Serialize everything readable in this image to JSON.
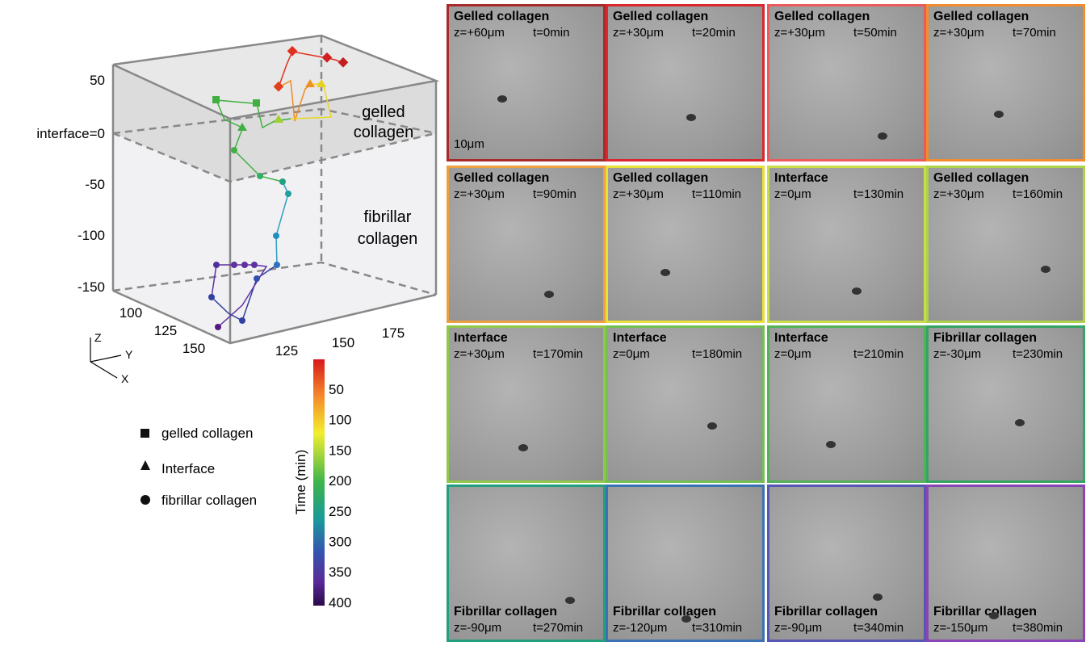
{
  "plot": {
    "z_ticks": [
      "50",
      "interface=0",
      "-50",
      "-100",
      "-150"
    ],
    "x_ticks": [
      "100",
      "125",
      "150"
    ],
    "y_ticks": [
      "125",
      "150",
      "175"
    ],
    "axes": {
      "z": "Z",
      "y": "Y",
      "x": "X"
    },
    "regions": {
      "gelled": [
        "gelled",
        "collagen"
      ],
      "fibrillar": [
        "fibrillar",
        "collagen"
      ]
    }
  },
  "legend": [
    "gelled collagen",
    "Interface",
    "fibrillar collagen"
  ],
  "colorbar": {
    "title": "Time (min)",
    "ticks": [
      "50",
      "100",
      "150",
      "200",
      "250",
      "300",
      "350",
      "400"
    ]
  },
  "scale_bar": "10μm",
  "panels": [
    {
      "title": "Gelled collagen",
      "z": "z=+60μm",
      "t": "t=0min",
      "color": "#a82a2a"
    },
    {
      "title": "Gelled collagen",
      "z": "z=+30μm",
      "t": "t=20min",
      "color": "#d8282e"
    },
    {
      "title": "Gelled collagen",
      "z": "z=+30μm",
      "t": "t=50min",
      "color": "#ec5a5a"
    },
    {
      "title": "Gelled collagen",
      "z": "z=+30μm",
      "t": "t=70min",
      "color": "#f28c2c"
    },
    {
      "title": "Gelled collagen",
      "z": "z=+30μm",
      "t": "t=90min",
      "color": "#eea040"
    },
    {
      "title": "Gelled collagen",
      "z": "z=+30μm",
      "t": "t=110min",
      "color": "#e8e238"
    },
    {
      "title": "Interface",
      "z": "z=0μm",
      "t": "t=130min",
      "color": "#cadc48"
    },
    {
      "title": "Gelled collagen",
      "z": "z=+30μm",
      "t": "t=160min",
      "color": "#aed24a"
    },
    {
      "title": "Interface",
      "z": "z=+30μm",
      "t": "t=170min",
      "color": "#92c84a"
    },
    {
      "title": "Interface",
      "z": "z=0μm",
      "t": "t=180min",
      "color": "#72c052"
    },
    {
      "title": "Interface",
      "z": "z=0μm",
      "t": "t=210min",
      "color": "#52b258"
    },
    {
      "title": "Fibrillar collagen",
      "z": "z=-30μm",
      "t": "t=230min",
      "color": "#34a462"
    },
    {
      "title": "Fibrillar collagen",
      "z": "z=-90μm",
      "t": "t=270min",
      "color": "#22a07e"
    },
    {
      "title": "Fibrillar collagen",
      "z": "z=-120μm",
      "t": "t=310min",
      "color": "#3a72b4"
    },
    {
      "title": "Fibrillar collagen",
      "z": "z=-90μm",
      "t": "t=340min",
      "color": "#5656b4"
    },
    {
      "title": "Fibrillar collagen",
      "z": "z=-150μm",
      "t": "t=380min",
      "color": "#8a44b4"
    }
  ]
}
